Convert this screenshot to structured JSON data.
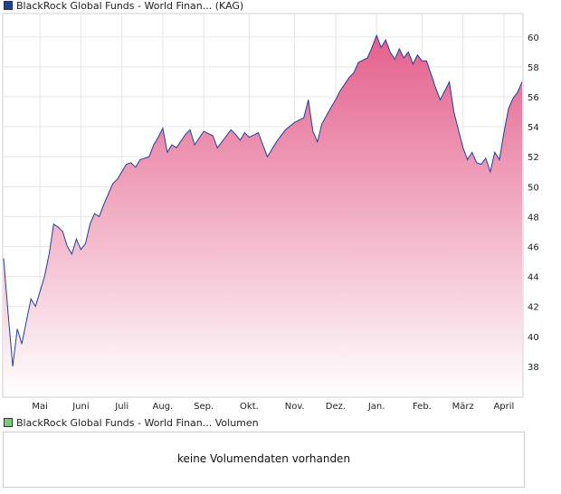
{
  "legend": {
    "price_label": "BlackRock Global Funds - World Finan... (KAG)",
    "price_color": "#1f3f9a",
    "volume_label": "BlackRock Global Funds - World Finan... Volumen",
    "volume_color": "#7dc97d"
  },
  "volume": {
    "message": "keine Volumendaten vorhanden"
  },
  "chart_data": {
    "type": "area",
    "line_color": "#1f3f9a",
    "fill_top_color": "#e4608c",
    "fill_bottom_color": "#ffffff",
    "grid": true,
    "y_axis_position": "right",
    "ylim": [
      36,
      61.5
    ],
    "yticks": [
      38,
      40,
      42,
      44,
      46,
      48,
      50,
      52,
      54,
      56,
      58,
      60
    ],
    "xlim": [
      0,
      57
    ],
    "xticks": [
      {
        "label": "Mai",
        "x": 4
      },
      {
        "label": "Juni",
        "x": 8.5
      },
      {
        "label": "Juli",
        "x": 13
      },
      {
        "label": "Aug.",
        "x": 17.5
      },
      {
        "label": "Sep.",
        "x": 22
      },
      {
        "label": "Okt.",
        "x": 27
      },
      {
        "label": "Nov.",
        "x": 32
      },
      {
        "label": "Dez.",
        "x": 36.5
      },
      {
        "label": "Jan.",
        "x": 41
      },
      {
        "label": "Feb.",
        "x": 46
      },
      {
        "label": "März",
        "x": 50.5
      },
      {
        "label": "April",
        "x": 55
      }
    ],
    "series": [
      {
        "values": [
          [
            0,
            45.2
          ],
          [
            0.5,
            41.5
          ],
          [
            1,
            38.0
          ],
          [
            1.5,
            40.5
          ],
          [
            2,
            39.5
          ],
          [
            2.5,
            41.0
          ],
          [
            3,
            42.5
          ],
          [
            3.5,
            42.0
          ],
          [
            4,
            43.0
          ],
          [
            4.5,
            44.0
          ],
          [
            5,
            45.5
          ],
          [
            5.5,
            47.5
          ],
          [
            6,
            47.3
          ],
          [
            6.5,
            47.0
          ],
          [
            7,
            46.0
          ],
          [
            7.5,
            45.5
          ],
          [
            8,
            46.5
          ],
          [
            8.5,
            45.8
          ],
          [
            9,
            46.2
          ],
          [
            9.5,
            47.5
          ],
          [
            10,
            48.2
          ],
          [
            10.5,
            48.0
          ],
          [
            11,
            48.8
          ],
          [
            11.5,
            49.5
          ],
          [
            12,
            50.2
          ],
          [
            12.5,
            50.5
          ],
          [
            13,
            51.0
          ],
          [
            13.5,
            51.5
          ],
          [
            14,
            51.6
          ],
          [
            14.5,
            51.3
          ],
          [
            15,
            51.8
          ],
          [
            16,
            52.0
          ],
          [
            16.5,
            52.8
          ],
          [
            17,
            53.3
          ],
          [
            17.5,
            53.9
          ],
          [
            18,
            52.3
          ],
          [
            18.5,
            52.8
          ],
          [
            19,
            52.6
          ],
          [
            20,
            53.5
          ],
          [
            20.5,
            53.8
          ],
          [
            21,
            52.8
          ],
          [
            22,
            53.7
          ],
          [
            23,
            53.4
          ],
          [
            23.5,
            52.6
          ],
          [
            24,
            53.0
          ],
          [
            25,
            53.8
          ],
          [
            25.5,
            53.5
          ],
          [
            26,
            53.1
          ],
          [
            26.5,
            53.6
          ],
          [
            27,
            53.3
          ],
          [
            28,
            53.6
          ],
          [
            28.5,
            52.8
          ],
          [
            29,
            52.0
          ],
          [
            30,
            53.0
          ],
          [
            31,
            53.8
          ],
          [
            32,
            54.3
          ],
          [
            33,
            54.6
          ],
          [
            33.5,
            55.8
          ],
          [
            34,
            53.7
          ],
          [
            34.5,
            53.0
          ],
          [
            35,
            54.2
          ],
          [
            36,
            55.3
          ],
          [
            36.5,
            55.8
          ],
          [
            37,
            56.4
          ],
          [
            38,
            57.3
          ],
          [
            38.5,
            57.6
          ],
          [
            39,
            58.3
          ],
          [
            40,
            58.6
          ],
          [
            40.5,
            59.3
          ],
          [
            41,
            60.1
          ],
          [
            41.5,
            59.3
          ],
          [
            42,
            59.8
          ],
          [
            42.5,
            59.0
          ],
          [
            43,
            58.5
          ],
          [
            43.5,
            59.2
          ],
          [
            44,
            58.6
          ],
          [
            44.5,
            59.0
          ],
          [
            45,
            58.2
          ],
          [
            45.5,
            58.8
          ],
          [
            46,
            58.4
          ],
          [
            46.5,
            58.4
          ],
          [
            47,
            57.5
          ],
          [
            47.5,
            56.6
          ],
          [
            48,
            55.8
          ],
          [
            48.5,
            56.4
          ],
          [
            49,
            57.0
          ],
          [
            49.5,
            55.0
          ],
          [
            50,
            53.8
          ],
          [
            50.5,
            52.6
          ],
          [
            51,
            51.8
          ],
          [
            51.5,
            52.3
          ],
          [
            52,
            51.6
          ],
          [
            52.5,
            51.5
          ],
          [
            53,
            51.9
          ],
          [
            53.5,
            51.0
          ],
          [
            54,
            52.3
          ],
          [
            54.5,
            51.8
          ],
          [
            55,
            53.6
          ],
          [
            55.5,
            55.2
          ],
          [
            56,
            55.9
          ],
          [
            56.5,
            56.3
          ],
          [
            57,
            57.0
          ]
        ]
      }
    ]
  }
}
